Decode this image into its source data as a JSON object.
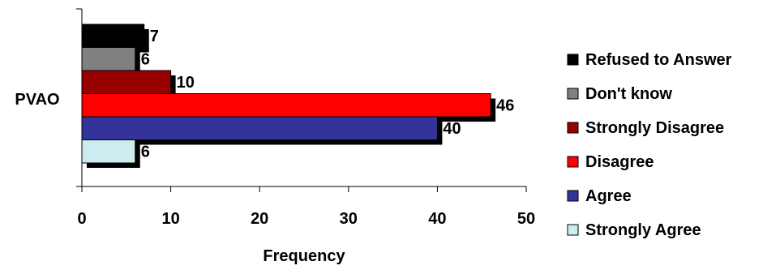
{
  "chart_data": {
    "type": "bar",
    "orientation": "horizontal",
    "categories": [
      "PVAO"
    ],
    "series": [
      {
        "name": "Refused to Answer",
        "values": [
          7
        ],
        "color": "#000000"
      },
      {
        "name": "Don't know",
        "values": [
          6
        ],
        "color": "#808080"
      },
      {
        "name": "Strongly Disagree",
        "values": [
          10
        ],
        "color": "#990000"
      },
      {
        "name": "Disagree",
        "values": [
          46
        ],
        "color": "#ff0000"
      },
      {
        "name": "Agree",
        "values": [
          40
        ],
        "color": "#333399"
      },
      {
        "name": "Strongly Agree",
        "values": [
          6
        ],
        "color": "#ccecef"
      }
    ],
    "title": "",
    "xlabel": "Frequency",
    "ylabel": "",
    "xlim": [
      0,
      50
    ],
    "xticks": [
      0,
      10,
      20,
      30,
      40,
      50
    ],
    "grid": false,
    "legend_position": "right",
    "data_labels": true,
    "bar_shadow": true
  }
}
